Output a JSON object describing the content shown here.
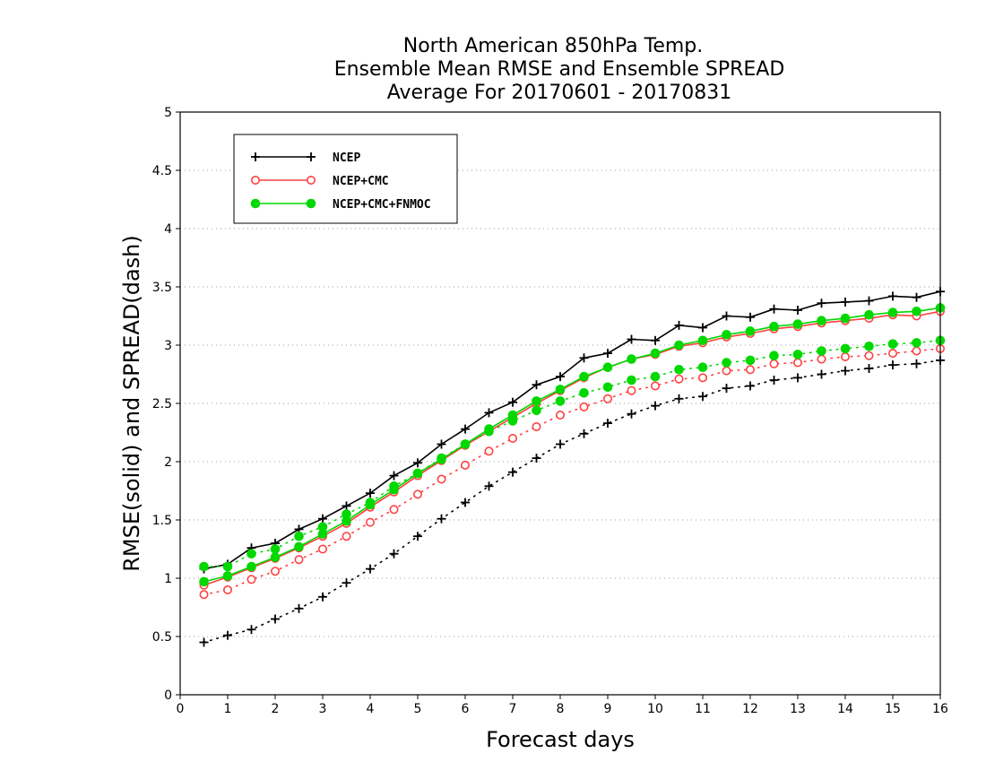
{
  "chart_data": {
    "type": "line",
    "title_lines": [
      "North American 850hPa Temp.",
      "Ensemble Mean RMSE and Ensemble SPREAD",
      "Average For 20170601 - 20170831"
    ],
    "xlabel": "Forecast days",
    "ylabel": "RMSE(solid) and SPREAD(dash)",
    "xlim": [
      0,
      16
    ],
    "ylim": [
      0,
      5
    ],
    "xticks": [
      0,
      1,
      2,
      3,
      4,
      5,
      6,
      7,
      8,
      9,
      10,
      11,
      12,
      13,
      14,
      15,
      16
    ],
    "yticks": [
      0,
      0.5,
      1,
      1.5,
      2,
      2.5,
      3,
      3.5,
      4,
      4.5,
      5
    ],
    "grid": true,
    "legend_position": "top-left",
    "x": [
      0.5,
      1,
      1.5,
      2,
      2.5,
      3,
      3.5,
      4,
      4.5,
      5,
      5.5,
      6,
      6.5,
      7,
      7.5,
      8,
      8.5,
      9,
      9.5,
      10,
      10.5,
      11,
      11.5,
      12,
      12.5,
      13,
      13.5,
      14,
      14.5,
      15,
      15.5,
      16
    ],
    "series": [
      {
        "name": "NCEP",
        "color": "#000000",
        "marker": "plus",
        "rmse": [
          1.08,
          1.12,
          1.26,
          1.3,
          1.42,
          1.51,
          1.62,
          1.73,
          1.88,
          1.99,
          2.15,
          2.28,
          2.42,
          2.51,
          2.66,
          2.73,
          2.89,
          2.93,
          3.05,
          3.04,
          3.17,
          3.15,
          3.25,
          3.24,
          3.31,
          3.3,
          3.36,
          3.37,
          3.38,
          3.42,
          3.41,
          3.46
        ],
        "spread": [
          0.45,
          0.51,
          0.56,
          0.65,
          0.74,
          0.84,
          0.96,
          1.08,
          1.21,
          1.36,
          1.51,
          1.65,
          1.79,
          1.91,
          2.03,
          2.15,
          2.24,
          2.33,
          2.41,
          2.48,
          2.54,
          2.56,
          2.63,
          2.65,
          2.7,
          2.72,
          2.75,
          2.78,
          2.8,
          2.83,
          2.84,
          2.87
        ]
      },
      {
        "name": "NCEP+CMC",
        "color": "#ff4040",
        "marker": "open-circle",
        "rmse": [
          0.94,
          1.01,
          1.09,
          1.17,
          1.26,
          1.36,
          1.47,
          1.61,
          1.74,
          1.88,
          2.01,
          2.14,
          2.26,
          2.38,
          2.5,
          2.61,
          2.72,
          2.81,
          2.88,
          2.92,
          2.99,
          3.02,
          3.07,
          3.1,
          3.14,
          3.16,
          3.19,
          3.21,
          3.23,
          3.26,
          3.25,
          3.29
        ],
        "spread": [
          0.86,
          0.9,
          0.99,
          1.06,
          1.16,
          1.25,
          1.36,
          1.48,
          1.59,
          1.72,
          1.85,
          1.97,
          2.09,
          2.2,
          2.3,
          2.4,
          2.47,
          2.54,
          2.61,
          2.65,
          2.71,
          2.72,
          2.78,
          2.79,
          2.84,
          2.85,
          2.88,
          2.9,
          2.91,
          2.93,
          2.95,
          2.97
        ]
      },
      {
        "name": "NCEP+CMC+FNMOC",
        "color": "#00d800",
        "marker": "filled-circle",
        "rmse": [
          0.97,
          1.02,
          1.1,
          1.18,
          1.27,
          1.38,
          1.49,
          1.63,
          1.76,
          1.9,
          2.02,
          2.15,
          2.28,
          2.4,
          2.52,
          2.62,
          2.73,
          2.81,
          2.88,
          2.93,
          3.0,
          3.04,
          3.09,
          3.12,
          3.16,
          3.18,
          3.21,
          3.23,
          3.26,
          3.28,
          3.29,
          3.32
        ],
        "spread": [
          1.1,
          1.1,
          1.21,
          1.25,
          1.36,
          1.44,
          1.55,
          1.65,
          1.79,
          1.9,
          2.03,
          2.15,
          2.26,
          2.35,
          2.44,
          2.52,
          2.59,
          2.64,
          2.7,
          2.73,
          2.79,
          2.81,
          2.85,
          2.87,
          2.91,
          2.92,
          2.95,
          2.97,
          2.99,
          3.01,
          3.02,
          3.04
        ]
      }
    ]
  }
}
